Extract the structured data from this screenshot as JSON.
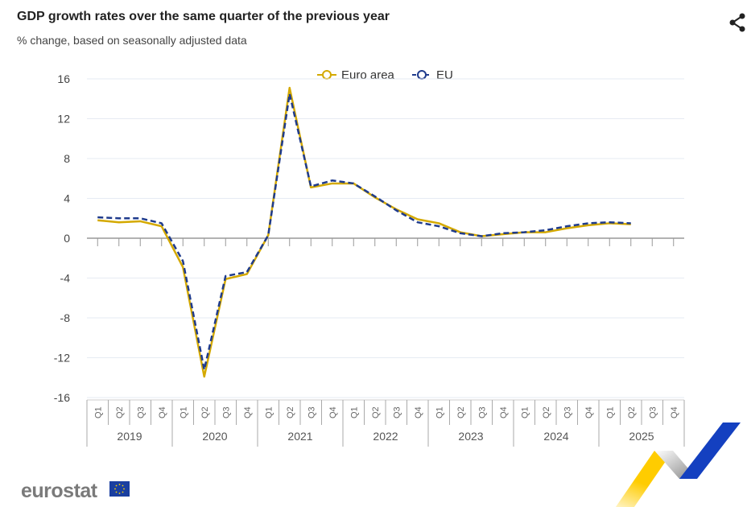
{
  "header": {
    "title": "GDP growth rates over the same quarter of the previous year",
    "subtitle": "% change, based on seasonally adjusted data"
  },
  "share_icon": "share-icon",
  "logo": {
    "text": "eurostat"
  },
  "colors": {
    "euro_area": "#d4a900",
    "eu": "#1f3b8c",
    "grid": "#e6ebf3",
    "axis": "#999999"
  },
  "chart_data": {
    "type": "line",
    "title": "GDP growth rates over the same quarter of the previous year",
    "ylabel": "% change",
    "xlabel": "",
    "ylim": [
      -16,
      16
    ],
    "yticks": [
      16,
      12,
      8,
      4,
      0,
      -4,
      -8,
      -12,
      -16
    ],
    "years": [
      "2019",
      "2020",
      "2021",
      "2022",
      "2023",
      "2024",
      "2025"
    ],
    "quarters": [
      "Q1",
      "Q2",
      "Q3",
      "Q4"
    ],
    "legend_position": "top-center",
    "series": [
      {
        "name": "Euro area",
        "style": "solid",
        "values": [
          1.8,
          1.6,
          1.7,
          1.2,
          -2.9,
          -13.9,
          -4.1,
          -3.6,
          0.3,
          15.1,
          5.1,
          5.5,
          5.5,
          4.1,
          2.9,
          1.9,
          1.5,
          0.6,
          0.2,
          0.4,
          0.6,
          0.6,
          1.0,
          1.3,
          1.5,
          1.4
        ]
      },
      {
        "name": "EU",
        "style": "dashed",
        "values": [
          2.1,
          2.0,
          2.0,
          1.5,
          -2.3,
          -13.2,
          -3.8,
          -3.4,
          0.3,
          14.5,
          5.2,
          5.8,
          5.5,
          4.2,
          2.8,
          1.6,
          1.2,
          0.5,
          0.2,
          0.5,
          0.6,
          0.8,
          1.2,
          1.5,
          1.6,
          1.5
        ]
      }
    ]
  }
}
